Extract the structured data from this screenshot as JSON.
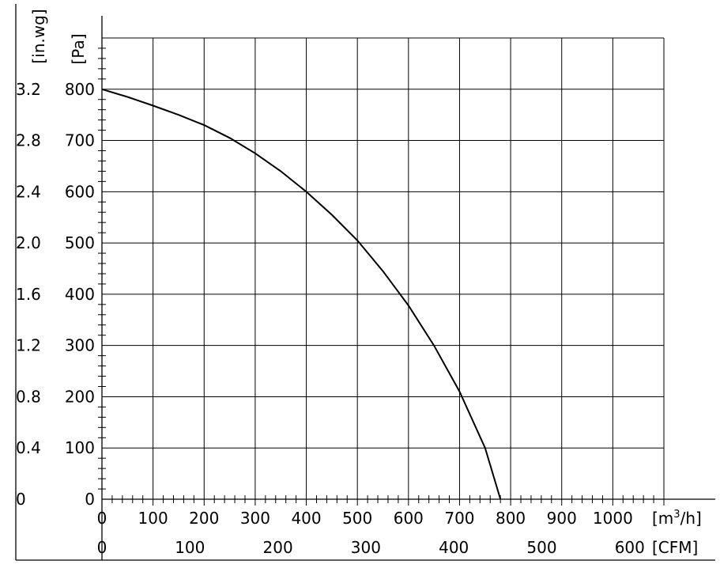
{
  "chart_data": {
    "type": "line",
    "title": "",
    "x_axes": [
      {
        "unit": "[m³/h]",
        "ticks": [
          0,
          100,
          200,
          300,
          400,
          500,
          600,
          700,
          800,
          900,
          1000
        ]
      },
      {
        "unit": "[CFM]",
        "ticks": [
          0,
          100,
          200,
          300,
          400,
          500,
          600
        ]
      }
    ],
    "y_axes": [
      {
        "unit": "[in.wg]",
        "ticks": [
          "0",
          "0.4",
          "0.8",
          "1.2",
          "1.6",
          "2.0",
          "2.4",
          "2.8",
          "3.2"
        ]
      },
      {
        "unit": "[Pa]",
        "ticks": [
          "0",
          "100",
          "200",
          "300",
          "400",
          "500",
          "600",
          "700",
          "800"
        ]
      }
    ],
    "xlim": [
      0,
      1100
    ],
    "ylim": [
      0,
      900
    ],
    "grid": true,
    "series": [
      {
        "x": [
          0,
          50,
          100,
          150,
          200,
          250,
          300,
          350,
          400,
          450,
          500,
          550,
          600,
          650,
          700,
          750,
          780
        ],
        "y": [
          800,
          785,
          768,
          750,
          730,
          705,
          675,
          640,
          600,
          555,
          505,
          445,
          378,
          300,
          210,
          100,
          0
        ]
      }
    ]
  }
}
